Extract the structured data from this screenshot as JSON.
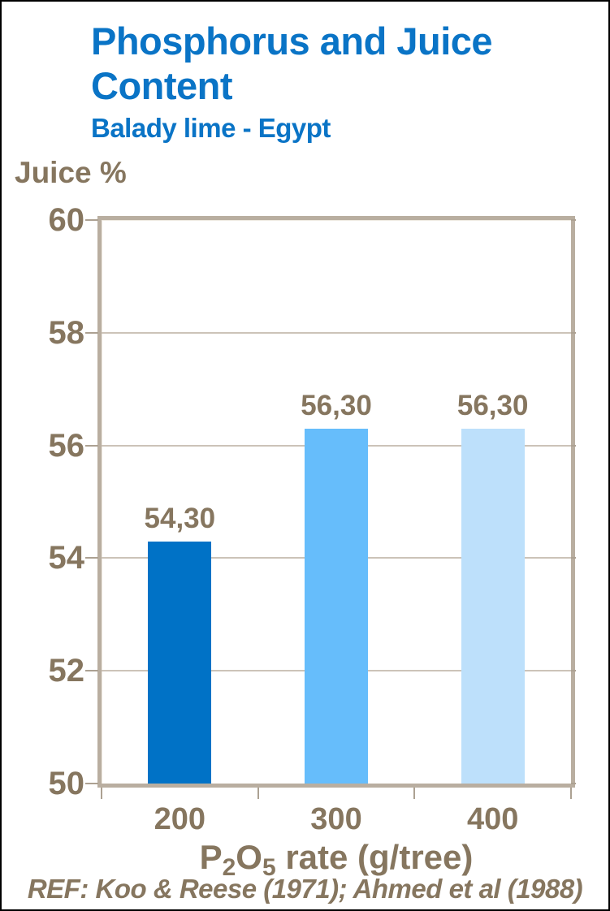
{
  "page": {
    "title": "Phosphorus and Juice Content",
    "subtitle": "Balady lime - Egypt",
    "footer": "REF: Koo & Reese (1971); Ahmed et al (1988)"
  },
  "colors": {
    "title_blue": "#0A74C6",
    "text_brown": "#86765F",
    "plot_border_tan": "#B9AEA0",
    "gridline_tan": "#CCC3B8",
    "bar_colors": [
      "#0072C6",
      "#66BDFB",
      "#BDE0FB"
    ]
  },
  "chart_data": {
    "type": "bar",
    "title": "Phosphorus and Juice Content",
    "subtitle": "Balady lime - Egypt",
    "ylabel": "Juice %",
    "xlabel": "P2O5 rate (g/tree)",
    "xlabel_parts": [
      {
        "text": "P",
        "sub": false
      },
      {
        "text": "2",
        "sub": true
      },
      {
        "text": "O",
        "sub": false
      },
      {
        "text": "5",
        "sub": true
      },
      {
        "text": " rate (g/tree)",
        "sub": false
      }
    ],
    "categories": [
      "200",
      "300",
      "400"
    ],
    "values": [
      54.3,
      56.3,
      56.3
    ],
    "value_labels": [
      "54,30",
      "56,30",
      "56,30"
    ],
    "series": [
      {
        "name": "Juice %",
        "values": [
          54.3,
          56.3,
          56.3
        ]
      }
    ],
    "ylim": [
      50,
      60
    ],
    "yticks": [
      50,
      52,
      54,
      56,
      58,
      60
    ],
    "grid": true,
    "legend_position": "none",
    "annotations": "REF: Koo & Reese (1971); Ahmed et al (1988)"
  }
}
